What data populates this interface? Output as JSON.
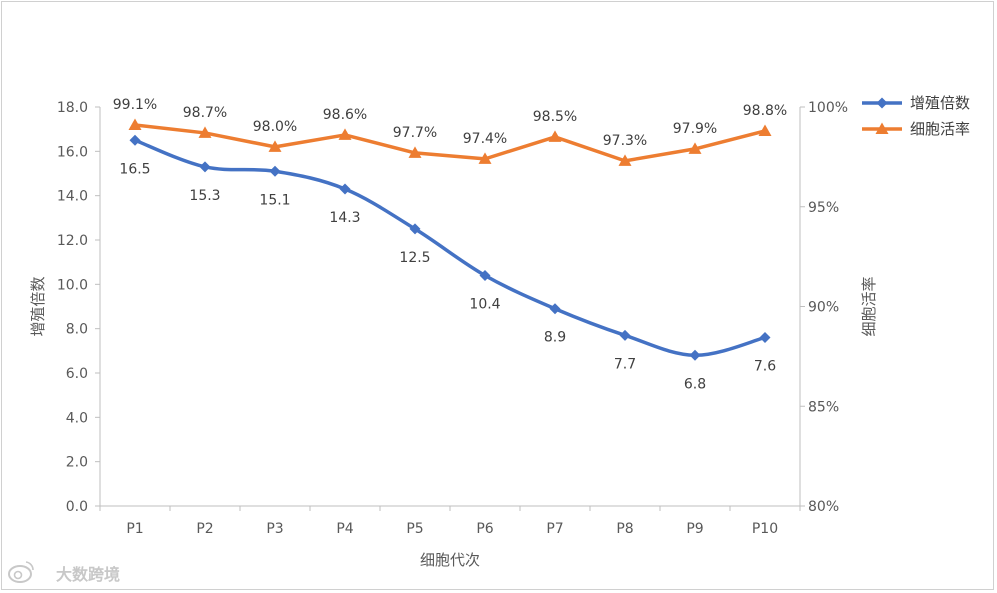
{
  "chart_data": {
    "type": "line",
    "categories": [
      "P1",
      "P2",
      "P3",
      "P4",
      "P5",
      "P6",
      "P7",
      "P8",
      "P9",
      "P10"
    ],
    "xlabel": "细胞代次",
    "ylabel_left": "增殖倍数",
    "ylabel_right": "细胞活率",
    "ylim_left": [
      0,
      18
    ],
    "yticks_left": [
      "0.0",
      "2.0",
      "4.0",
      "6.0",
      "8.0",
      "10.0",
      "12.0",
      "14.0",
      "16.0",
      "18.0"
    ],
    "ylim_right": [
      80,
      100
    ],
    "yticks_right": [
      "80%",
      "85%",
      "90%",
      "95%",
      "100%"
    ],
    "series": [
      {
        "name": "增殖倍数",
        "axis": "left",
        "color": "#4472C4",
        "marker": "diamond",
        "smooth": true,
        "values": [
          16.5,
          15.3,
          15.1,
          14.3,
          12.5,
          10.4,
          8.9,
          7.7,
          6.8,
          7.6
        ],
        "labels": [
          "16.5",
          "15.3",
          "15.1",
          "14.3",
          "12.5",
          "10.4",
          "8.9",
          "7.7",
          "6.8",
          "7.6"
        ]
      },
      {
        "name": "细胞活率",
        "axis": "right",
        "color": "#ED7D31",
        "marker": "triangle",
        "smooth": false,
        "values": [
          99.1,
          98.7,
          98.0,
          98.6,
          97.7,
          97.4,
          98.5,
          97.3,
          97.9,
          98.8
        ],
        "labels": [
          "99.1%",
          "98.7%",
          "98.0%",
          "98.6%",
          "97.7%",
          "97.4%",
          "98.5%",
          "97.3%",
          "97.9%",
          "98.8%"
        ]
      }
    ],
    "legend": "right-top"
  },
  "watermark": "大数跨境",
  "watermark_icon": "weibo-icon"
}
